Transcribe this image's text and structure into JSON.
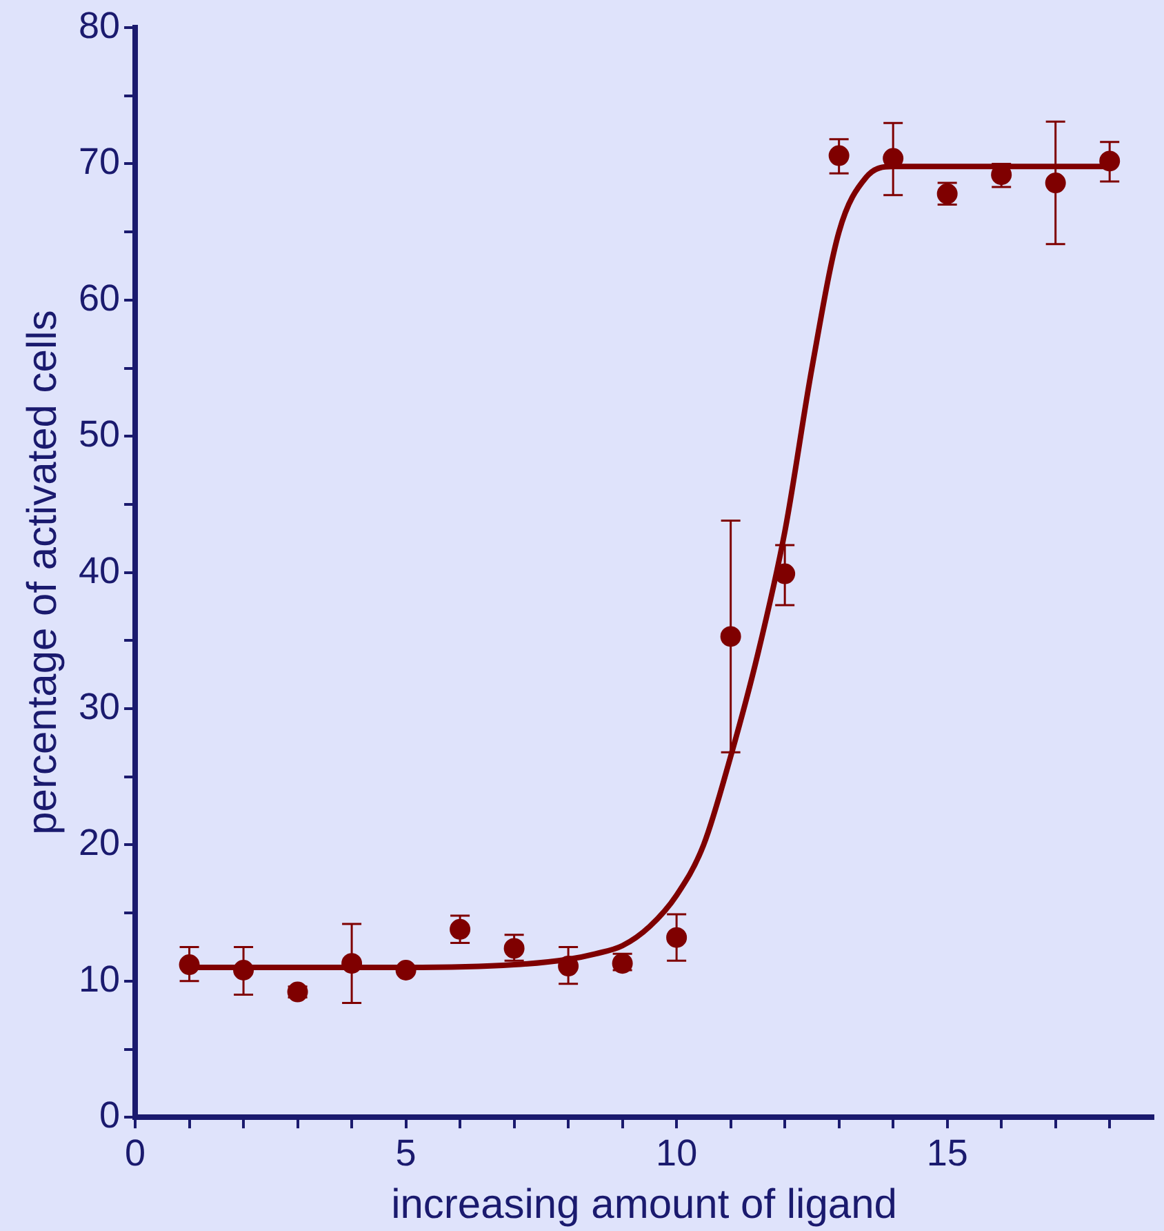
{
  "chart_data": {
    "type": "scatter",
    "xlabel": "increasing amount of ligand",
    "ylabel": "percentage of activated cells",
    "xlim": [
      0,
      18.8
    ],
    "ylim": [
      0,
      80
    ],
    "xticks": [
      0,
      {
        "value": 1,
        "label": null
      },
      {
        "value": 2,
        "label": null
      },
      {
        "value": 3,
        "label": null
      },
      {
        "value": 4,
        "label": null
      },
      5,
      {
        "value": 6,
        "label": null
      },
      {
        "value": 7,
        "label": null
      },
      {
        "value": 8,
        "label": null
      },
      {
        "value": 9,
        "label": null
      },
      10,
      {
        "value": 11,
        "label": null
      },
      {
        "value": 12,
        "label": null
      },
      {
        "value": 13,
        "label": null
      },
      {
        "value": 14,
        "label": null
      },
      15,
      {
        "value": 16,
        "label": null
      },
      {
        "value": 17,
        "label": null
      },
      {
        "value": 18,
        "label": null
      }
    ],
    "yticks": [
      0,
      {
        "value": 5,
        "label": null
      },
      10,
      {
        "value": 15,
        "label": null
      },
      20,
      {
        "value": 25,
        "label": null
      },
      30,
      {
        "value": 35,
        "label": null
      },
      40,
      {
        "value": 45,
        "label": null
      },
      50,
      {
        "value": 55,
        "label": null
      },
      60,
      {
        "value": 65,
        "label": null
      },
      70,
      {
        "value": 75,
        "label": null
      },
      80
    ],
    "grid": false,
    "legend": false,
    "series": [
      {
        "marker": "circle",
        "color": "#7f0000",
        "x": [
          1,
          2,
          3,
          4,
          5,
          6,
          7,
          8,
          9,
          10,
          11,
          12,
          13,
          14,
          15,
          16,
          17,
          18
        ],
        "values": [
          11.2,
          10.8,
          9.2,
          11.3,
          10.8,
          13.8,
          12.4,
          11.1,
          11.3,
          13.2,
          35.3,
          39.9,
          70.6,
          70.4,
          67.8,
          69.2,
          68.6,
          70.2
        ],
        "errors": [
          [
            10,
            12.5
          ],
          [
            9,
            12.5
          ],
          [
            8.8,
            9.6
          ],
          [
            8.4,
            14.2
          ],
          null,
          [
            12.8,
            14.8
          ],
          [
            11.5,
            13.4
          ],
          [
            9.8,
            12.5
          ],
          [
            10.8,
            12
          ],
          [
            11.5,
            14.9
          ],
          [
            26.8,
            43.8
          ],
          [
            37.6,
            42
          ],
          [
            69.3,
            71.8
          ],
          [
            67.7,
            73
          ],
          [
            67,
            68.6
          ],
          [
            68.3,
            70
          ],
          [
            64.1,
            73.1
          ],
          [
            68.7,
            71.6
          ]
        ]
      },
      {
        "type": "line",
        "marker": "none",
        "line_style": "solid",
        "color": "#7f0000",
        "x": [
          1,
          3,
          5,
          7,
          8,
          8.5,
          9,
          9.5,
          10,
          10.5,
          11,
          11.5,
          12,
          12.5,
          13,
          13.5,
          14,
          16,
          18
        ],
        "values": [
          11,
          11,
          11,
          11.2,
          11.6,
          12,
          12.6,
          14,
          16.3,
          20,
          26.5,
          34,
          43,
          55,
          65,
          69,
          69.8,
          69.8,
          69.8
        ]
      }
    ]
  }
}
